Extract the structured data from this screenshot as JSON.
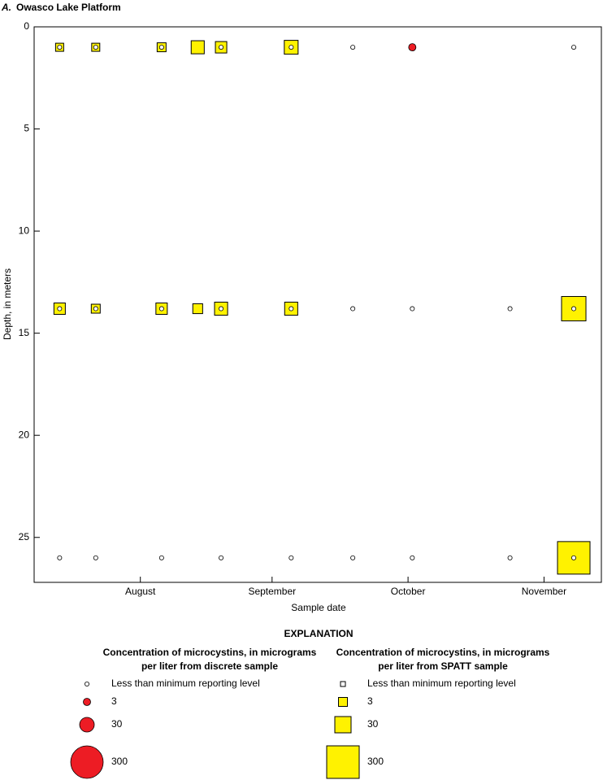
{
  "chart_data": {
    "type": "bubble",
    "title_prefix": "A.",
    "title": "Owasco Lake Platform",
    "x_label": "Sample date",
    "y_label": "Depth, in meters",
    "xlim": [
      0,
      133.5
    ],
    "xticks": [
      {
        "value": 25,
        "label": "August"
      },
      {
        "value": 56,
        "label": "September"
      },
      {
        "value": 88,
        "label": "October"
      },
      {
        "value": 120,
        "label": "November"
      }
    ],
    "ylim": [
      0,
      27.2
    ],
    "yticks": [
      0,
      5,
      10,
      15,
      20,
      25
    ],
    "y_inverted": true,
    "legend_title": "EXPLANATION",
    "legend_sizes": [
      3,
      30,
      300
    ],
    "series": [
      {
        "name": [
          "Concentration of microcystins, in micrograms",
          "per liter from SPATT sample"
        ],
        "marker": "square",
        "color": "#fff200",
        "below_mrl_label": "Less than minimum reporting level",
        "x": [
          6,
          14.5,
          30,
          38.5,
          44,
          60.5,
          6,
          14.5,
          30,
          38.5,
          44,
          60.5,
          127,
          127
        ],
        "y": [
          1,
          1,
          1,
          1,
          1,
          1,
          13.8,
          13.8,
          13.8,
          13.8,
          13.8,
          13.8,
          13.8,
          26
        ],
        "size": [
          2.3,
          2.3,
          3,
          11,
          6.5,
          14,
          6.5,
          3,
          6.5,
          4,
          11,
          11,
          95,
          300
        ]
      },
      {
        "name": [
          "Concentration of microcystins, in micrograms",
          "per liter from discrete sample"
        ],
        "marker": "circle",
        "color": "#ed1c24",
        "below_mrl_label": "Less than minimum reporting level",
        "x": [
          6,
          14.5,
          30,
          44,
          60.5,
          75,
          89,
          127,
          6,
          14.5,
          30,
          44,
          60.5,
          75,
          89,
          112,
          127,
          6,
          14.5,
          30,
          44,
          60.5,
          75,
          89,
          112,
          127
        ],
        "y": [
          1,
          1,
          1,
          1,
          1,
          1,
          1,
          1,
          13.8,
          13.8,
          13.8,
          13.8,
          13.8,
          13.8,
          13.8,
          13.8,
          13.8,
          26,
          26,
          26,
          26,
          26,
          26,
          26,
          26,
          26
        ],
        "size": [
          null,
          null,
          null,
          null,
          null,
          null,
          3,
          null,
          null,
          null,
          null,
          null,
          null,
          null,
          null,
          null,
          null,
          null,
          null,
          null,
          null,
          null,
          null,
          null,
          null,
          null
        ]
      }
    ]
  }
}
